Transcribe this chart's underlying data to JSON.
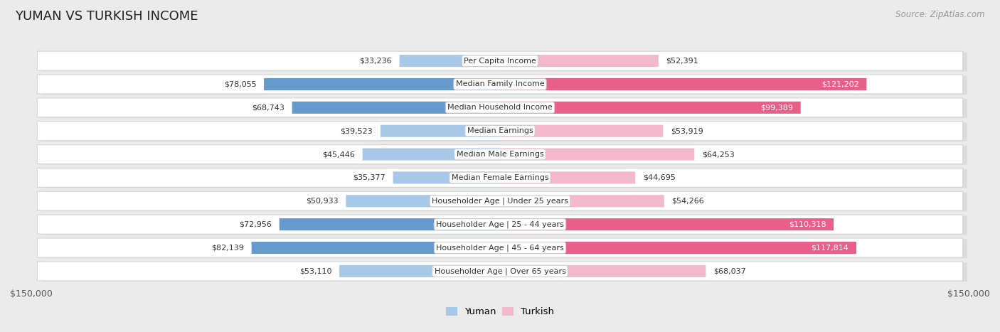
{
  "title": "YUMAN VS TURKISH INCOME",
  "source": "Source: ZipAtlas.com",
  "categories": [
    "Per Capita Income",
    "Median Family Income",
    "Median Household Income",
    "Median Earnings",
    "Median Male Earnings",
    "Median Female Earnings",
    "Householder Age | Under 25 years",
    "Householder Age | 25 - 44 years",
    "Householder Age | 45 - 64 years",
    "Householder Age | Over 65 years"
  ],
  "yuman_values": [
    33236,
    78055,
    68743,
    39523,
    45446,
    35377,
    50933,
    72956,
    82139,
    53110
  ],
  "turkish_values": [
    52391,
    121202,
    99389,
    53919,
    64253,
    44695,
    54266,
    110318,
    117814,
    68037
  ],
  "yuman_labels": [
    "$33,236",
    "$78,055",
    "$68,743",
    "$39,523",
    "$45,446",
    "$35,377",
    "$50,933",
    "$72,956",
    "$82,139",
    "$53,110"
  ],
  "turkish_labels": [
    "$52,391",
    "$121,202",
    "$99,389",
    "$53,919",
    "$64,253",
    "$44,695",
    "$54,266",
    "$110,318",
    "$117,814",
    "$68,037"
  ],
  "max_val": 150000,
  "yuman_color_light": "#a8c8e8",
  "yuman_color_dark": "#6699cc",
  "turkish_color_light": "#f4b8cc",
  "turkish_color_dark": "#e8608a",
  "bg_color": "#ebebeb",
  "row_bg": "#ffffff",
  "row_shadow": "#d0d0d0",
  "bar_height": 0.52,
  "legend_yuman": "Yuman",
  "legend_turkish": "Turkish",
  "axis_label_left": "$150,000",
  "axis_label_right": "$150,000",
  "title_fontsize": 13,
  "source_fontsize": 8.5,
  "label_fontsize": 8,
  "category_fontsize": 8,
  "white_label_threshold": 90000
}
